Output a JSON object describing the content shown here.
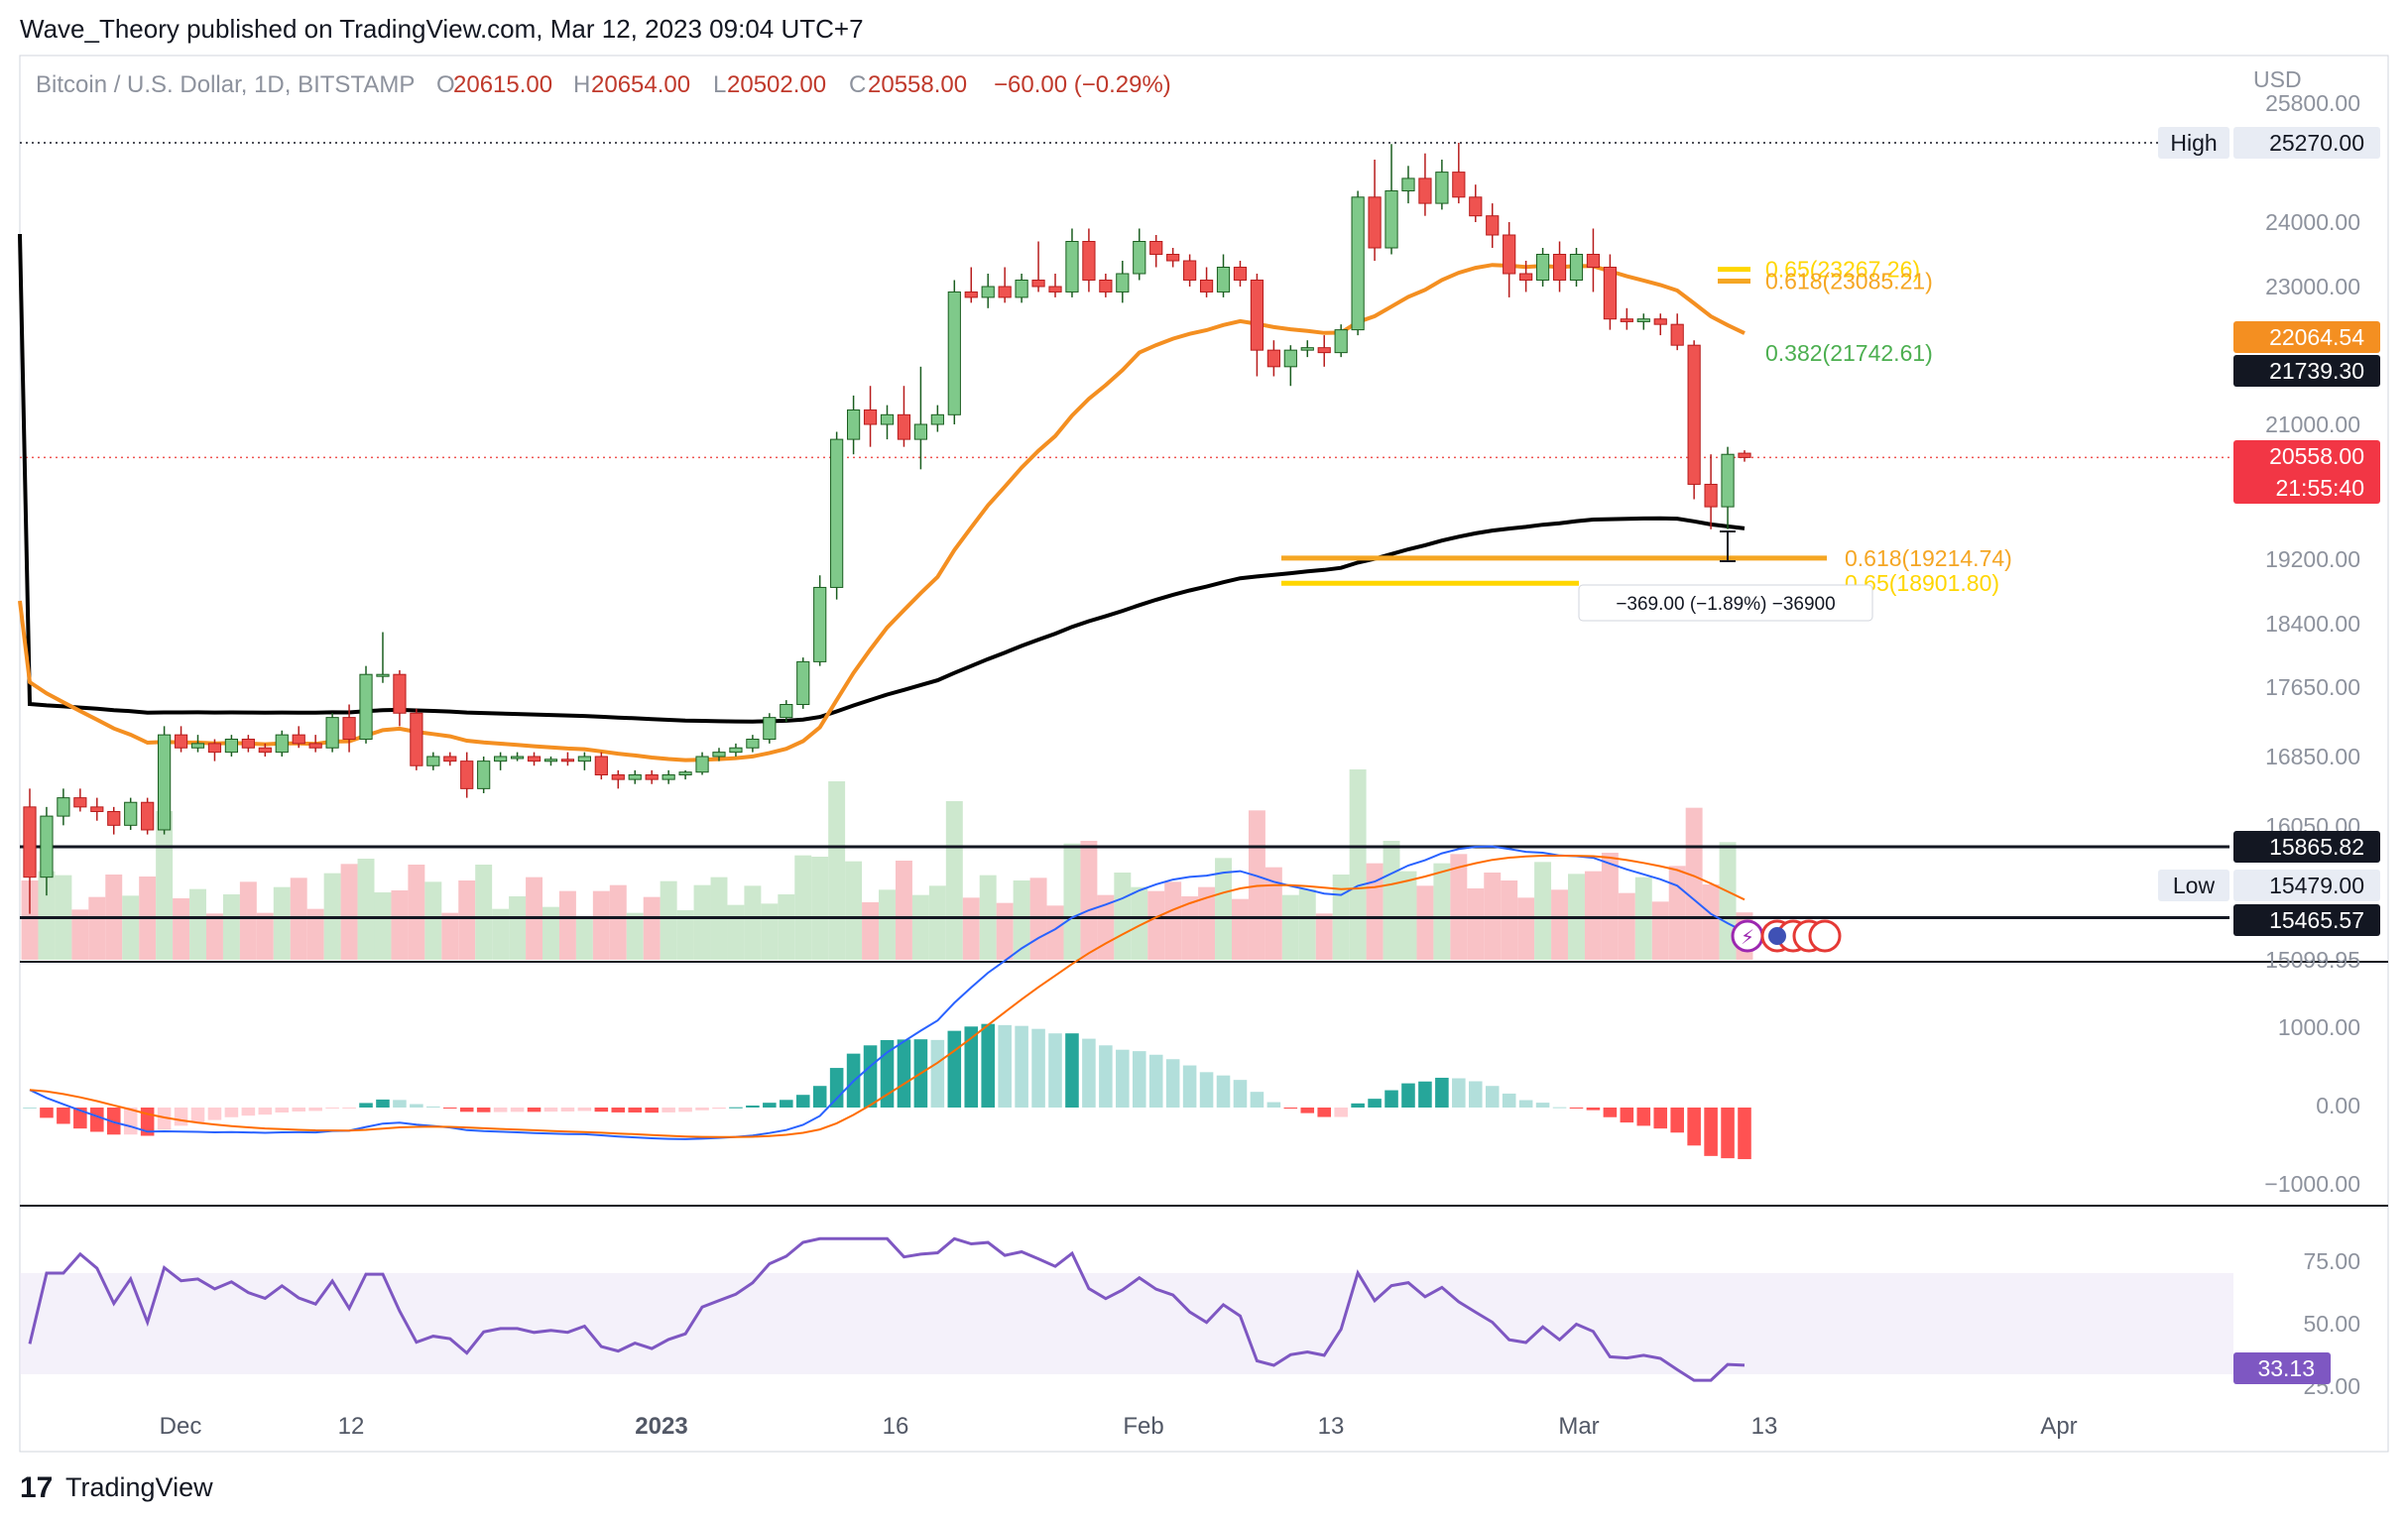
{
  "header": {
    "published": "Wave_Theory published on TradingView.com, Mar 12, 2023 09:04 UTC+7"
  },
  "legend": {
    "symbol": "Bitcoin / U.S. Dollar, 1D, BITSTAMP",
    "o_key": "O",
    "o_val": "20615.00",
    "h_key": "H",
    "h_val": "20654.00",
    "l_key": "L",
    "l_val": "20502.00",
    "c_key": "C",
    "c_val": "20558.00",
    "change": "−60.00 (−0.29%)"
  },
  "currency": "USD",
  "footer": {
    "brand": "TradingView"
  },
  "colors": {
    "up": "#26a69a",
    "up_body": "#7fc98a",
    "down": "#ef5350",
    "ma200": "#000000",
    "ma50": "#f48f21",
    "macd": "#2962ff",
    "signal": "#ff6d00",
    "rsi": "#7e57c2",
    "fib_orange": "#f5a623",
    "fib_yellow": "#ffeb3b",
    "fib_green": "#4caf50"
  },
  "chart_data": {
    "type": "candlestick",
    "panes": [
      "price",
      "macd",
      "rsi"
    ],
    "price_axis": {
      "ticks": [
        "25800.00",
        "24000.00",
        "23000.00",
        "21000.00",
        "19200.00",
        "18400.00",
        "17650.00",
        "16850.00",
        "16050.00",
        "15099.95"
      ],
      "range": [
        15099.95,
        25800
      ]
    },
    "time_axis": {
      "ticks": [
        {
          "label": "Dec",
          "bold": false
        },
        {
          "label": "12",
          "bold": false
        },
        {
          "label": "2023",
          "bold": true
        },
        {
          "label": "16",
          "bold": false
        },
        {
          "label": "Feb",
          "bold": false
        },
        {
          "label": "13",
          "bold": false
        },
        {
          "label": "Mar",
          "bold": false
        },
        {
          "label": "13",
          "bold": false
        },
        {
          "label": "Apr",
          "bold": false
        }
      ]
    },
    "price_tags": [
      {
        "label": "High",
        "value": "25270.00"
      },
      {
        "label": "",
        "value": "22064.54"
      },
      {
        "label": "",
        "value": "21739.30"
      },
      {
        "label": "",
        "value": "20558.00",
        "sub": "21:55:40"
      },
      {
        "label": "",
        "value": "15865.82"
      },
      {
        "label": "Low",
        "value": "15479.00"
      },
      {
        "label": "",
        "value": "15465.57"
      }
    ],
    "horizontal_lines": [
      {
        "name": "high",
        "value": 25270,
        "style": "dotted"
      },
      {
        "name": "last-price",
        "value": 20558,
        "style": "dotted-red"
      },
      {
        "name": "support-1",
        "value": 15865.82,
        "style": "solid"
      },
      {
        "name": "support-2",
        "value": 15479,
        "style": "solid"
      }
    ],
    "fib_levels": [
      {
        "label": "0.65(23267.26)",
        "value": 23267.26,
        "color": "yellow"
      },
      {
        "label": "0.618(23085.21)",
        "value": 23085.21,
        "color": "orange"
      },
      {
        "label": "0.382(21742.61)",
        "value": 21742.61,
        "color": "green"
      },
      {
        "label": "0.618(19214.74)",
        "value": 19214.74,
        "color": "orange"
      },
      {
        "label": "0.65(18901.80)",
        "value": 18901.8,
        "color": "yellow"
      }
    ],
    "measure": {
      "label": "−369.00 (−1.89%) −36900"
    },
    "candles": [
      [
        16300,
        16500,
        15500,
        15700
      ],
      [
        15700,
        16300,
        15600,
        16200
      ],
      [
        16200,
        16500,
        16100,
        16400
      ],
      [
        16400,
        16500,
        16250,
        16300
      ],
      [
        16300,
        16400,
        16150,
        16250
      ],
      [
        16250,
        16300,
        16000,
        16100
      ],
      [
        16100,
        16400,
        16050,
        16350
      ],
      [
        16350,
        16400,
        16000,
        16050
      ],
      [
        16050,
        17200,
        16000,
        17100
      ],
      [
        17100,
        17200,
        16900,
        16950
      ],
      [
        16950,
        17100,
        16900,
        17000
      ],
      [
        17000,
        17050,
        16800,
        16900
      ],
      [
        16900,
        17100,
        16850,
        17050
      ],
      [
        17050,
        17100,
        16900,
        16950
      ],
      [
        16950,
        17000,
        16850,
        16900
      ],
      [
        16900,
        17150,
        16850,
        17100
      ],
      [
        17100,
        17200,
        16950,
        17000
      ],
      [
        17000,
        17100,
        16900,
        16950
      ],
      [
        16950,
        17350,
        16900,
        17300
      ],
      [
        17300,
        17450,
        16900,
        17050
      ],
      [
        17050,
        17900,
        17000,
        17800
      ],
      [
        17800,
        18300,
        17700,
        17800
      ],
      [
        17800,
        17850,
        17200,
        17350
      ],
      [
        17350,
        17400,
        16700,
        16750
      ],
      [
        16750,
        16900,
        16700,
        16850
      ],
      [
        16850,
        16900,
        16750,
        16800
      ],
      [
        16800,
        16900,
        16400,
        16500
      ],
      [
        16500,
        16850,
        16450,
        16800
      ],
      [
        16800,
        16900,
        16700,
        16850
      ],
      [
        16850,
        16900,
        16800,
        16850
      ],
      [
        16850,
        16900,
        16750,
        16800
      ],
      [
        16800,
        16850,
        16750,
        16820
      ],
      [
        16820,
        16900,
        16750,
        16800
      ],
      [
        16800,
        16900,
        16700,
        16850
      ],
      [
        16850,
        16900,
        16600,
        16650
      ],
      [
        16650,
        16700,
        16500,
        16600
      ],
      [
        16600,
        16700,
        16550,
        16650
      ],
      [
        16650,
        16700,
        16550,
        16600
      ],
      [
        16600,
        16700,
        16550,
        16650
      ],
      [
        16650,
        16700,
        16600,
        16680
      ],
      [
        16680,
        16900,
        16650,
        16850
      ],
      [
        16850,
        16950,
        16800,
        16900
      ],
      [
        16900,
        17000,
        16850,
        16950
      ],
      [
        16950,
        17100,
        16900,
        17050
      ],
      [
        17050,
        17350,
        17000,
        17300
      ],
      [
        17300,
        17500,
        17250,
        17450
      ],
      [
        17450,
        18000,
        17400,
        17950
      ],
      [
        17950,
        19000,
        17900,
        18850
      ],
      [
        18850,
        20900,
        18700,
        20800
      ],
      [
        20800,
        21300,
        20600,
        21150
      ],
      [
        21150,
        21400,
        20700,
        21000
      ],
      [
        21000,
        21200,
        20800,
        21100
      ],
      [
        21100,
        21400,
        20700,
        20800
      ],
      [
        20800,
        21600,
        20400,
        21000
      ],
      [
        21000,
        21200,
        20900,
        21100
      ],
      [
        21100,
        23100,
        21000,
        22900
      ],
      [
        22900,
        23300,
        22700,
        22800
      ],
      [
        22800,
        23200,
        22600,
        23000
      ],
      [
        23000,
        23300,
        22700,
        22800
      ],
      [
        22800,
        23200,
        22700,
        23100
      ],
      [
        23100,
        23700,
        22900,
        23000
      ],
      [
        23000,
        23200,
        22800,
        22900
      ],
      [
        22900,
        23900,
        22800,
        23700
      ],
      [
        23700,
        23900,
        22900,
        23100
      ],
      [
        23100,
        23200,
        22800,
        22900
      ],
      [
        22900,
        23400,
        22700,
        23200
      ],
      [
        23200,
        23900,
        23100,
        23700
      ],
      [
        23700,
        23800,
        23300,
        23500
      ],
      [
        23500,
        23600,
        23300,
        23400
      ],
      [
        23400,
        23500,
        23000,
        23100
      ],
      [
        23100,
        23300,
        22800,
        22900
      ],
      [
        22900,
        23500,
        22800,
        23300
      ],
      [
        23300,
        23400,
        23000,
        23100
      ],
      [
        23100,
        23200,
        21500,
        21800
      ],
      [
        21800,
        22000,
        21500,
        21600
      ],
      [
        21600,
        21900,
        21400,
        21800
      ],
      [
        21800,
        22000,
        21700,
        21850
      ],
      [
        21850,
        22100,
        21600,
        21750
      ],
      [
        21750,
        22300,
        21700,
        22200
      ],
      [
        22200,
        24500,
        22100,
        24400
      ],
      [
        24400,
        25000,
        23400,
        23600
      ],
      [
        23600,
        25250,
        23500,
        24500
      ],
      [
        24500,
        24900,
        24300,
        24700
      ],
      [
        24700,
        25100,
        24100,
        24300
      ],
      [
        24300,
        25000,
        24200,
        24800
      ],
      [
        24800,
        25270,
        24300,
        24400
      ],
      [
        24400,
        24600,
        24000,
        24100
      ],
      [
        24100,
        24300,
        23600,
        23800
      ],
      [
        23800,
        24000,
        22800,
        23200
      ],
      [
        23200,
        23400,
        22900,
        23100
      ],
      [
        23100,
        23600,
        23000,
        23500
      ],
      [
        23500,
        23700,
        22900,
        23100
      ],
      [
        23100,
        23600,
        23000,
        23500
      ],
      [
        23500,
        23900,
        22900,
        23300
      ],
      [
        23300,
        23500,
        22200,
        22400
      ],
      [
        22400,
        22600,
        22200,
        22350
      ],
      [
        22350,
        22500,
        22200,
        22400
      ],
      [
        22400,
        22500,
        22100,
        22300
      ],
      [
        22300,
        22500,
        21800,
        21900
      ],
      [
        21900,
        22000,
        20000,
        20200
      ],
      [
        20200,
        20600,
        19600,
        19900
      ],
      [
        19900,
        20700,
        19600,
        20600
      ],
      [
        20615,
        20654,
        20502,
        20558
      ]
    ],
    "macd_axis": {
      "ticks": [
        "1000.00",
        "0.00",
        "−1000.00"
      ]
    },
    "rsi_axis": {
      "ticks": [
        "75.00",
        "50.00",
        "25.00"
      ],
      "last": "33.13"
    }
  }
}
